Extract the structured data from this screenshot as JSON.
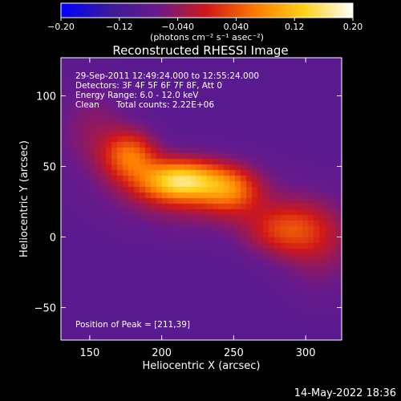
{
  "colorbar": {
    "ticks": [
      {
        "value": -0.2,
        "label": "−0.20"
      },
      {
        "value": -0.12,
        "label": "−0.12"
      },
      {
        "value": -0.04,
        "label": "−0.040"
      },
      {
        "value": 0.04,
        "label": "0.040"
      },
      {
        "value": 0.12,
        "label": "0.12"
      },
      {
        "value": 0.2,
        "label": "0.20"
      }
    ],
    "range": [
      -0.2,
      0.2
    ],
    "colors": [
      "#0000ff",
      "#3a1a9a",
      "#6a1a8a",
      "#d01818",
      "#ff7a00",
      "#ffd21a",
      "#ffffff"
    ],
    "units": "(photons cm⁻² s⁻¹ asec⁻²)"
  },
  "chart_data": {
    "type": "heatmap",
    "title": "Reconstructed RHESSI Image",
    "xlabel": "Heliocentric X (arcsec)",
    "ylabel": "Heliocentric Y (arcsec)",
    "xlim": [
      130,
      325
    ],
    "ylim": [
      -73,
      127
    ],
    "x_ticks": [
      {
        "value": 150,
        "label": "150"
      },
      {
        "value": 200,
        "label": "200"
      },
      {
        "value": 250,
        "label": "250"
      },
      {
        "value": 300,
        "label": "300"
      }
    ],
    "y_ticks": [
      {
        "value": -50,
        "label": "−50"
      },
      {
        "value": 0,
        "label": "0"
      },
      {
        "value": 50,
        "label": "50"
      },
      {
        "value": 100,
        "label": "100"
      }
    ],
    "sources": [
      {
        "x": 213,
        "y": 40,
        "amplitude": 0.2,
        "sigma_x": 20,
        "sigma_y": 10
      },
      {
        "x": 178,
        "y": 58,
        "amplitude": 0.13,
        "sigma_x": 13,
        "sigma_y": 12
      },
      {
        "x": 248,
        "y": 33,
        "amplitude": 0.1,
        "sigma_x": 14,
        "sigma_y": 11
      },
      {
        "x": 286,
        "y": 5,
        "amplitude": 0.1,
        "sigma_x": 20,
        "sigma_y": 13
      },
      {
        "x": 222,
        "y": 30,
        "amplitude": 0.06,
        "sigma_x": 40,
        "sigma_y": 18
      },
      {
        "x": 152,
        "y": 75,
        "amplitude": 0.045,
        "sigma_x": 18,
        "sigma_y": 22
      },
      {
        "x": 310,
        "y": -5,
        "amplitude": 0.05,
        "sigma_x": 20,
        "sigma_y": 25
      }
    ],
    "background": -0.09,
    "peak_position": [
      211,
      39
    ]
  },
  "annotations": {
    "time_range": "29-Sep-2011 12:49:24.000 to 12:55:24.000",
    "detectors": "Detectors: 3F 4F 5F 6F 7F 8F, Att 0",
    "energy": "Energy Range: 6.0 - 12.0 keV",
    "method": "Clean",
    "total_counts": "Total counts: 2.22E+06",
    "peak": "Position of Peak = [211,39]"
  },
  "footer": {
    "timestamp": "14-May-2022 18:36"
  }
}
